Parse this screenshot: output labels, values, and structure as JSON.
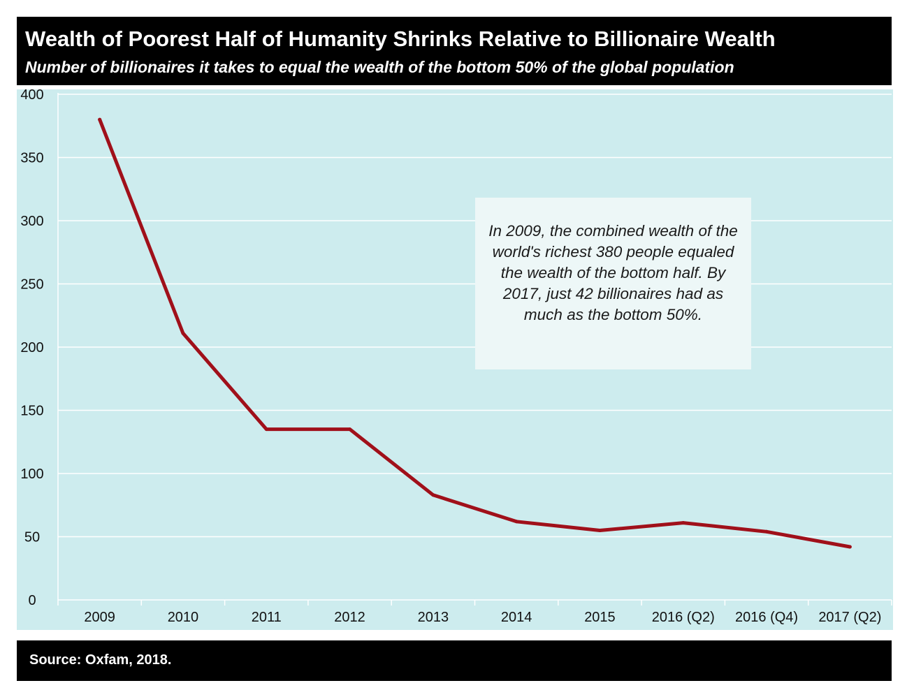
{
  "header": {
    "title": "Wealth of Poorest Half of Humanity Shrinks Relative to Billionaire Wealth",
    "subtitle": "Number of billionaires it takes to equal the wealth of the bottom 50% of the global population"
  },
  "annotation": "In 2009, the combined wealth of the world's richest 380 people equaled the wealth of the bottom half. By 2017, just 42 billionaires had as much as the bottom 50%.",
  "footer": {
    "source": "Source: Oxfam, 2018."
  },
  "colors": {
    "line": "#a0101a",
    "plot_background": "#cdecee",
    "gridline": "#ffffff",
    "header_background": "#000000"
  },
  "chart_data": {
    "type": "line",
    "title": "Wealth of Poorest Half of Humanity Shrinks Relative to Billionaire Wealth",
    "subtitle": "Number of billionaires it takes to equal the wealth of the bottom 50% of the global population",
    "categories": [
      "2009",
      "2010",
      "2011",
      "2012",
      "2013",
      "2014",
      "2015",
      "2016 (Q2)",
      "2016 (Q4)",
      "2017 (Q2)"
    ],
    "series": [
      {
        "values": [
          380,
          211,
          135,
          135,
          83,
          62,
          55,
          61,
          54,
          42
        ]
      }
    ],
    "ylim": [
      0,
      400
    ],
    "yticks": [
      0,
      50,
      100,
      150,
      200,
      250,
      300,
      350,
      400
    ],
    "grid": true,
    "legend": false,
    "xlabel": "",
    "ylabel": ""
  }
}
